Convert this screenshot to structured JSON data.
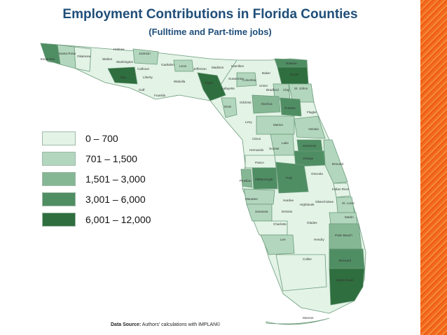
{
  "title": "Employment Contributions in Florida Counties",
  "subtitle": "(Fulltime and Part-time jobs)",
  "legend": [
    {
      "label": "0 – 700",
      "color": "#e3f3e6"
    },
    {
      "label": "701 – 1,500",
      "color": "#b3d7be"
    },
    {
      "label": "1,501 – 3,000",
      "color": "#86b795"
    },
    {
      "label": "3,001 – 6,000",
      "color": "#4f8e63"
    },
    {
      "label": "6,001 – 12,000",
      "color": "#2f6e3e"
    }
  ],
  "source": {
    "prefix": "Data Source:",
    "text": " Authors' calculations with IMPLAN©"
  },
  "county_labels": {
    "escambia": "Escambia",
    "santa_rosa": "Santa Rosa",
    "okaloosa": "Okaloosa",
    "walton": "Walton",
    "holmes": "Holmes",
    "jackson": "Jackson",
    "washington": "Washington",
    "calhoun": "Calhoun",
    "bay": "Bay",
    "gulf": "Gulf",
    "liberty": "Liberty",
    "franklin": "Franklin",
    "gadsden": "Gadsden",
    "leon": "Leon",
    "wakulla": "Wakulla",
    "jefferson": "Jefferson",
    "madison": "Madison",
    "taylor": "Taylor",
    "hamilton": "Hamilton",
    "suwannee": "Suwannee",
    "lafayette": "Lafayette",
    "dixie": "Dixie",
    "columbia": "Columbia",
    "baker": "Baker",
    "nassau": "Nassau",
    "duval": "Duval",
    "union": "Union",
    "bradford": "Bradford",
    "clay": "Clay",
    "st_johns": "St. Johns",
    "gilchrist": "Gilchrist",
    "alachua": "Alachua",
    "putnam": "Putnam",
    "flagler": "Flagler",
    "levy": "Levy",
    "marion": "Marion",
    "volusia": "Volusia",
    "citrus": "Citrus",
    "lake": "Lake",
    "sumter": "Sumter",
    "seminole": "Seminole",
    "hernando": "Hernando",
    "orange": "Orange",
    "brevard": "Brevard",
    "pasco": "Pasco",
    "osceola": "Osceola",
    "pinellas": "Pinellas",
    "hillsborough": "Hillsborough",
    "polk": "Polk",
    "indian_river": "Indian River",
    "manatee": "Manatee",
    "hardee": "Hardee",
    "highlands": "Highlands",
    "okeechobee": "Okeechobee",
    "st_lucie": "St. Lucie",
    "sarasota": "Sarasota",
    "desoto": "DeSoto",
    "martin": "Martin",
    "charlotte": "Charlotte",
    "glades": "Glades",
    "palm_beach": "Palm Beach",
    "lee": "Lee",
    "hendry": "Hendry",
    "collier": "Collier",
    "broward": "Broward",
    "miami_dade": "Miami-Dade",
    "monroe": "Monroe"
  }
}
